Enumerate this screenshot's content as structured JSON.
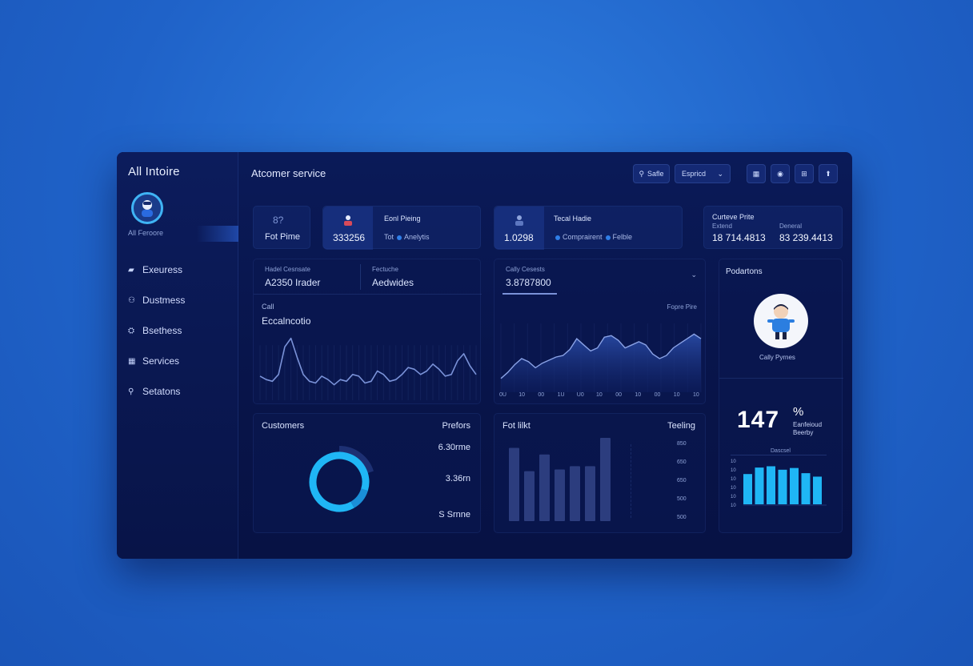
{
  "sidebar": {
    "brand": "All Intoire",
    "user_label": "All Feroore",
    "items": [
      {
        "label": "Exeuress",
        "icon": "briefcase-icon",
        "glyph": "▰"
      },
      {
        "label": "Dustmess",
        "icon": "users-icon",
        "glyph": "⚇"
      },
      {
        "label": "Bsethess",
        "icon": "lock-icon",
        "glyph": "⛭"
      },
      {
        "label": "Services",
        "icon": "grid-icon",
        "glyph": "▦"
      },
      {
        "label": "Setatons",
        "icon": "search-icon",
        "glyph": "⚲"
      }
    ]
  },
  "header": {
    "title": "Atcomer service",
    "search_label": "Safle",
    "select_value": "Espricd",
    "buttons": [
      "calendar-icon",
      "camera-icon",
      "gift-icon",
      "share-icon"
    ]
  },
  "stats": [
    {
      "title": "Fot Pime",
      "value": "",
      "icon": "people-icon",
      "icon_text": "8?"
    },
    {
      "title": "Eonl Pieing",
      "value": "333256",
      "sub1": "Tot",
      "sub2": "Anelytis"
    },
    {
      "title": "Tecal Hadie",
      "value": "1.0298",
      "sub1": "Comprairent",
      "sub2": "Felble"
    },
    {
      "title": "Curteve Prite",
      "sub_left": "Extend",
      "sub_right": "Deneral",
      "v1": "18 714.4813",
      "v2": "83 239.4413"
    }
  ],
  "panel_left": {
    "tab1_label": "Hadel Cesnsate",
    "tab1_value": "A2350 Irader",
    "tab2_label": "Fectuche",
    "tab2_value": "Aedwides",
    "small_label": "Call",
    "section_title": "Eccalncotio"
  },
  "panel_mid": {
    "label": "Cally Cesests",
    "value": "3.8787800",
    "legend": "Fopre Pire",
    "x_ticks": [
      "0U",
      "10",
      "00",
      "1U",
      "U0",
      "10",
      "00",
      "10",
      "00",
      "10",
      "10"
    ]
  },
  "profile": {
    "title": "Podartons",
    "name": "Cally Pyrnes",
    "big_value": "147",
    "big_unit": "%",
    "big_desc1": "Eanfeioud",
    "big_desc2": "Beerby",
    "mini_label": "Dascsel",
    "mini_ticks": [
      "10",
      "10",
      "10",
      "10",
      "10",
      "10"
    ]
  },
  "customers": {
    "title": "Customers",
    "right_title": "Prefors",
    "values": [
      "6.30rme",
      "3.36rn",
      "S Srnne"
    ]
  },
  "bars_panel": {
    "title": "Fot lilkt",
    "right_title": "Teeling",
    "y_ticks": [
      "850",
      "650",
      "650",
      "500",
      "500"
    ]
  },
  "colors": {
    "accent": "#1fb6f5",
    "line": "#7a92d8",
    "bar_dark": "#2c3d7e"
  },
  "chart_data": [
    {
      "type": "line",
      "name": "left-line",
      "x": [
        0,
        1,
        2,
        3,
        4,
        5,
        6,
        7,
        8,
        9,
        10,
        11,
        12,
        13,
        14,
        15,
        16,
        17,
        18,
        19,
        20,
        21,
        22,
        23,
        24,
        25,
        26,
        27,
        28,
        29,
        30,
        31,
        32,
        33,
        34,
        35
      ],
      "values": [
        28,
        24,
        22,
        30,
        62,
        72,
        50,
        30,
        22,
        20,
        28,
        24,
        18,
        24,
        22,
        30,
        28,
        20,
        22,
        34,
        30,
        22,
        24,
        30,
        38,
        36,
        30,
        34,
        42,
        36,
        28,
        30,
        46,
        54,
        40,
        30
      ]
    },
    {
      "type": "area",
      "name": "mid-area",
      "x": [
        0,
        1,
        2,
        3,
        4,
        5,
        6,
        7,
        8,
        9,
        10,
        11,
        12,
        13,
        14,
        15,
        16,
        17,
        18,
        19,
        20,
        21,
        22,
        23,
        24,
        25,
        26,
        27,
        28,
        29
      ],
      "values": [
        18,
        26,
        36,
        44,
        40,
        32,
        38,
        42,
        46,
        48,
        56,
        70,
        62,
        54,
        58,
        72,
        74,
        68,
        58,
        62,
        66,
        62,
        50,
        44,
        48,
        58,
        64,
        70,
        76,
        70
      ]
    },
    {
      "type": "pie",
      "name": "customers-ring",
      "values": [
        88,
        12
      ]
    },
    {
      "type": "bar",
      "name": "bars-panel",
      "values": [
        88,
        60,
        80,
        62,
        66,
        66,
        100
      ]
    },
    {
      "type": "bar",
      "name": "profile-mini-bars",
      "values": [
        70,
        85,
        88,
        80,
        84,
        72,
        64
      ]
    }
  ]
}
